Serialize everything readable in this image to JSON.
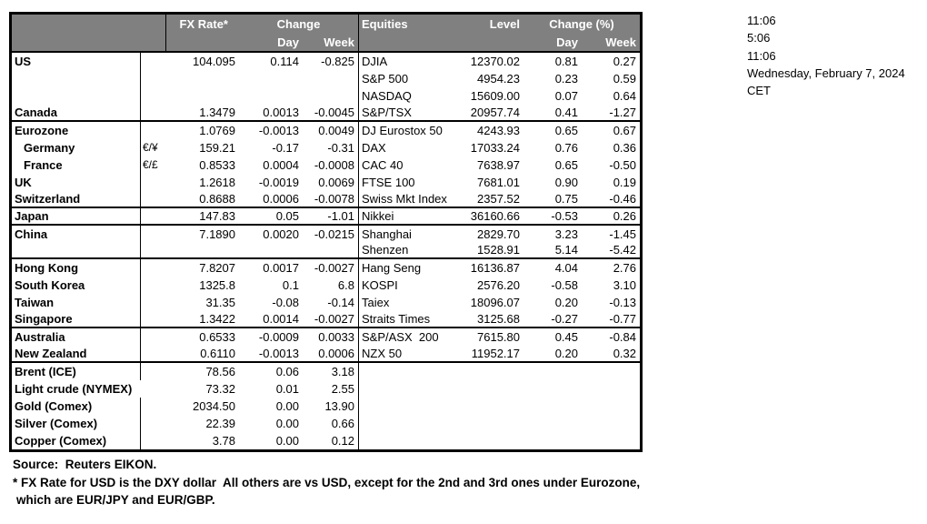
{
  "colors": {
    "header_bg": "#808080",
    "header_text": "#ffffff",
    "border": "#000000",
    "text": "#000000"
  },
  "header": {
    "fx": {
      "rate_label": "FX Rate*",
      "change_label": "Change",
      "day_label": "Day",
      "week_label": "Week"
    },
    "equities": {
      "title": "Equities",
      "level_label": "Level",
      "change_label": "Change (%)",
      "day_label": "Day",
      "week_label": "Week"
    }
  },
  "clock": {
    "lines": [
      "11:06",
      "5:06",
      "11:06",
      "Wednesday, February 7, 2024",
      "CET"
    ]
  },
  "footer": {
    "source": "Source:  Reuters EIKON.",
    "note1": "* FX Rate for USD is the DXY dollar  All others are vs USD, except for the 2nd and 3rd ones under Eurozone,",
    "note2": "which are EUR/JPY and EUR/GBP."
  },
  "rows": [
    {
      "name": "US",
      "pair": "",
      "rate": "104.095",
      "day": "0.114",
      "week": "-0.825",
      "eq": "DJIA",
      "level": "12370.02",
      "eday": "0.81",
      "eweek": "0.27",
      "indent": false,
      "group_end": false,
      "no_divider": false
    },
    {
      "name": "",
      "pair": "",
      "rate": "",
      "day": "",
      "week": "",
      "eq": "S&P 500",
      "level": "4954.23",
      "eday": "0.23",
      "eweek": "0.59",
      "indent": false,
      "group_end": false,
      "no_divider": false
    },
    {
      "name": "",
      "pair": "",
      "rate": "",
      "day": "",
      "week": "",
      "eq": "NASDAQ",
      "level": "15609.00",
      "eday": "0.07",
      "eweek": "0.64",
      "indent": false,
      "group_end": false,
      "no_divider": false
    },
    {
      "name": "Canada",
      "pair": "",
      "rate": "1.3479",
      "day": "0.0013",
      "week": "-0.0045",
      "eq": "S&P/TSX",
      "level": "20957.74",
      "eday": "0.41",
      "eweek": "-1.27",
      "indent": false,
      "group_end": true,
      "no_divider": false
    },
    {
      "name": "Eurozone",
      "pair": "",
      "rate": "1.0769",
      "day": "-0.0013",
      "week": "0.0049",
      "eq": "DJ Eurostox 50",
      "level": "4243.93",
      "eday": "0.65",
      "eweek": "0.67",
      "indent": false,
      "group_end": false,
      "no_divider": false
    },
    {
      "name": "Germany",
      "pair": "€/¥",
      "rate": "159.21",
      "day": "-0.17",
      "week": "-0.31",
      "eq": "DAX",
      "level": "17033.24",
      "eday": "0.76",
      "eweek": "0.36",
      "indent": true,
      "group_end": false,
      "no_divider": false
    },
    {
      "name": "France",
      "pair": "€/£",
      "rate": "0.8533",
      "day": "0.0004",
      "week": "-0.0008",
      "eq": "CAC 40",
      "level": "7638.97",
      "eday": "0.65",
      "eweek": "-0.50",
      "indent": true,
      "group_end": false,
      "no_divider": false
    },
    {
      "name": "UK",
      "pair": "",
      "rate": "1.2618",
      "day": "-0.0019",
      "week": "0.0069",
      "eq": "FTSE 100",
      "level": "7681.01",
      "eday": "0.90",
      "eweek": "0.19",
      "indent": false,
      "group_end": false,
      "no_divider": false
    },
    {
      "name": "Switzerland",
      "pair": "",
      "rate": "0.8688",
      "day": "0.0006",
      "week": "-0.0078",
      "eq": "Swiss Mkt Index",
      "level": "2357.52",
      "eday": "0.75",
      "eweek": "-0.46",
      "indent": false,
      "group_end": true,
      "no_divider": false
    },
    {
      "name": "Japan",
      "pair": "",
      "rate": "147.83",
      "day": "0.05",
      "week": "-1.01",
      "eq": "Nikkei",
      "level": "36160.66",
      "eday": "-0.53",
      "eweek": "0.26",
      "indent": false,
      "group_end": true,
      "no_divider": false
    },
    {
      "name": "China",
      "pair": "",
      "rate": "7.1890",
      "day": "0.0020",
      "week": "-0.0215",
      "eq": "Shanghai",
      "level": "2829.70",
      "eday": "3.23",
      "eweek": "-1.45",
      "indent": false,
      "group_end": false,
      "no_divider": false
    },
    {
      "name": "",
      "pair": "",
      "rate": "",
      "day": "",
      "week": "",
      "eq": "Shenzen",
      "level": "1528.91",
      "eday": "5.14",
      "eweek": "-5.42",
      "indent": false,
      "group_end": true,
      "no_divider": false
    },
    {
      "name": "Hong Kong",
      "pair": "",
      "rate": "7.8207",
      "day": "0.0017",
      "week": "-0.0027",
      "eq": "Hang Seng",
      "level": "16136.87",
      "eday": "4.04",
      "eweek": "2.76",
      "indent": false,
      "group_end": false,
      "no_divider": false
    },
    {
      "name": "South Korea",
      "pair": "",
      "rate": "1325.8",
      "day": "0.1",
      "week": "6.8",
      "eq": "KOSPI",
      "level": "2576.20",
      "eday": "-0.58",
      "eweek": "3.10",
      "indent": false,
      "group_end": false,
      "no_divider": false
    },
    {
      "name": "Taiwan",
      "pair": "",
      "rate": "31.35",
      "day": "-0.08",
      "week": "-0.14",
      "eq": "Taiex",
      "level": "18096.07",
      "eday": "0.20",
      "eweek": "-0.13",
      "indent": false,
      "group_end": false,
      "no_divider": false
    },
    {
      "name": "Singapore",
      "pair": "",
      "rate": "1.3422",
      "day": "0.0014",
      "week": "-0.0027",
      "eq": "Straits Times",
      "level": "3125.68",
      "eday": "-0.27",
      "eweek": "-0.77",
      "indent": false,
      "group_end": true,
      "no_divider": false
    },
    {
      "name": "Australia",
      "pair": "",
      "rate": "0.6533",
      "day": "-0.0009",
      "week": "0.0033",
      "eq": "S&P/ASX  200",
      "level": "7615.80",
      "eday": "0.45",
      "eweek": "-0.84",
      "indent": false,
      "group_end": false,
      "no_divider": false
    },
    {
      "name": "New Zealand",
      "pair": "",
      "rate": "0.6110",
      "day": "-0.0013",
      "week": "0.0006",
      "eq": "NZX 50",
      "level": "11952.17",
      "eday": "0.20",
      "eweek": "0.32",
      "indent": false,
      "group_end": true,
      "no_divider": false
    },
    {
      "name": "Brent (ICE)",
      "pair": "",
      "rate": "78.56",
      "day": "0.06",
      "week": "3.18",
      "eq": "",
      "level": "",
      "eday": "",
      "eweek": "",
      "indent": false,
      "group_end": false,
      "no_divider": false
    },
    {
      "name": "Light crude (NYMEX)",
      "pair": "",
      "rate": "73.32",
      "day": "0.01",
      "week": "2.55",
      "eq": "",
      "level": "",
      "eday": "",
      "eweek": "",
      "indent": false,
      "group_end": false,
      "no_divider": true
    },
    {
      "name": "Gold (Comex)",
      "pair": "",
      "rate": "2034.50",
      "day": "0.00",
      "week": "13.90",
      "eq": "",
      "level": "",
      "eday": "",
      "eweek": "",
      "indent": false,
      "group_end": false,
      "no_divider": false
    },
    {
      "name": "Silver (Comex)",
      "pair": "",
      "rate": "22.39",
      "day": "0.00",
      "week": "0.66",
      "eq": "",
      "level": "",
      "eday": "",
      "eweek": "",
      "indent": false,
      "group_end": false,
      "no_divider": false
    },
    {
      "name": "Copper (Comex)",
      "pair": "",
      "rate": "3.78",
      "day": "0.00",
      "week": "0.12",
      "eq": "",
      "level": "",
      "eday": "",
      "eweek": "",
      "indent": false,
      "group_end": false,
      "no_divider": false
    }
  ]
}
